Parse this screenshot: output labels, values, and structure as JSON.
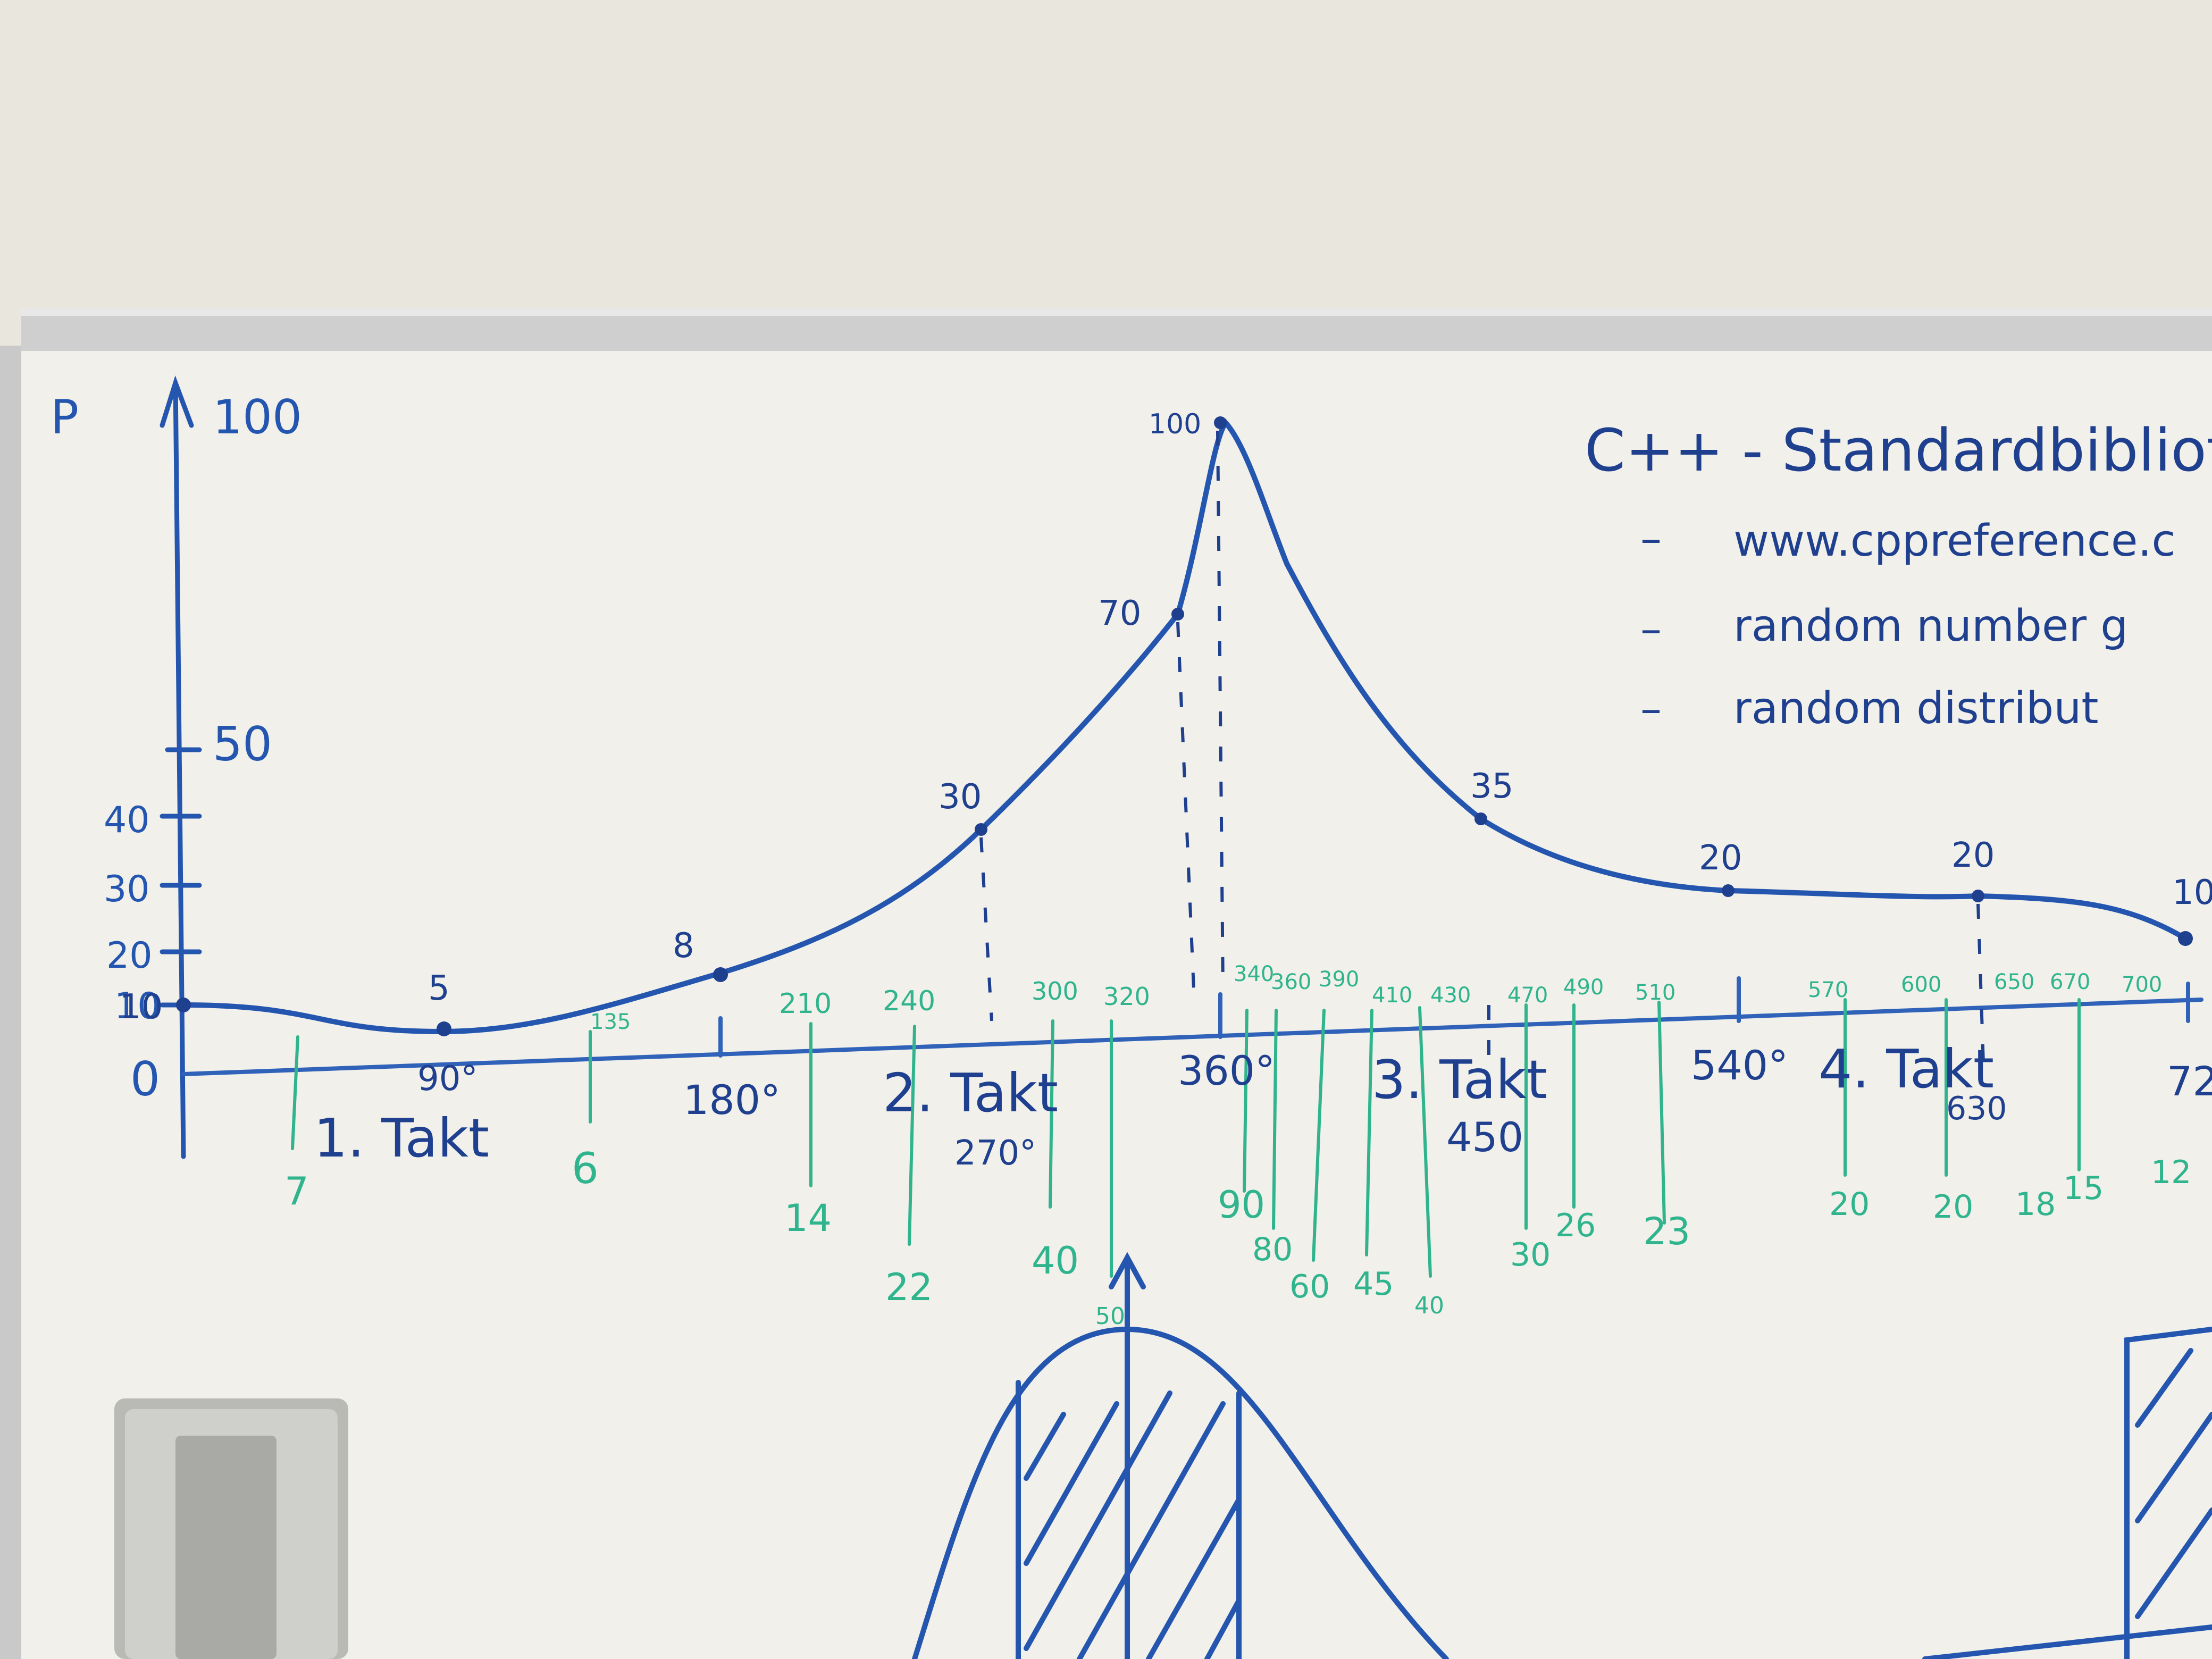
{
  "colors": {
    "wall": "#e9e6de",
    "board": "#f1f0ea",
    "frame": "#cfcfcf",
    "blue_marker": "#2456b0",
    "dark_blue_marker": "#1f3f8f",
    "green_marker": "#2fb48d"
  },
  "icons": {
    "eraser": "eraser-icon"
  },
  "whiteboard": {
    "y_axis_letter": "P",
    "y_axis_ticks": [
      "100",
      "50",
      "40",
      "30",
      "20",
      "10",
      "0"
    ],
    "x_axis_ticks": [
      "90°",
      "180°",
      "270°",
      "360°",
      "450",
      "540°",
      "630",
      "72"
    ],
    "takt_labels": [
      "1. Takt",
      "2. Takt",
      "3. Takt",
      "4. Takt"
    ],
    "curve_labels": [
      "10",
      "5",
      "8",
      "30",
      "70",
      "100",
      "35",
      "20",
      "20",
      "10"
    ],
    "green_top_labels": [
      "135",
      "210",
      "240",
      "300",
      "320",
      "340",
      "360",
      "390",
      "410",
      "430",
      "470",
      "490",
      "510",
      "570",
      "600",
      "650",
      "670",
      "700"
    ],
    "green_bottom_labels": [
      "7",
      "6",
      "14",
      "22",
      "40",
      "50",
      "90",
      "80",
      "60",
      "45",
      "40",
      "30",
      "26",
      "23",
      "20",
      "20",
      "18",
      "15",
      "12"
    ],
    "notes_title": "C++ - Standardbibliothek",
    "notes_items": [
      "www.cppreference.c",
      "random number g",
      "random distribut"
    ]
  }
}
